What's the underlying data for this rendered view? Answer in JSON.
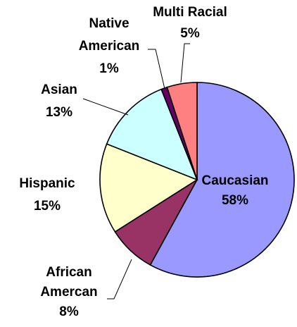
{
  "chart_data": {
    "type": "pie",
    "title": "",
    "slices": [
      {
        "label_lines": [
          "Caucasian"
        ],
        "value_label": "58%",
        "value": 58,
        "color": "#9999ff"
      },
      {
        "label_lines": [
          "African",
          "Amercan"
        ],
        "value_label": "8%",
        "value": 8,
        "color": "#993366"
      },
      {
        "label_lines": [
          "Hispanic"
        ],
        "value_label": "15%",
        "value": 15,
        "color": "#ffffcc"
      },
      {
        "label_lines": [
          "Asian"
        ],
        "value_label": "13%",
        "value": 13,
        "color": "#ccffff"
      },
      {
        "label_lines": [
          "Native",
          "American"
        ],
        "value_label": "1%",
        "value": 1,
        "color": "#660066"
      },
      {
        "label_lines": [
          "Multi Racial"
        ],
        "value_label": "5%",
        "value": 5,
        "color": "#ff8080"
      }
    ],
    "start_direction": "12 o'clock",
    "direction": "clockwise",
    "legend": "none"
  }
}
